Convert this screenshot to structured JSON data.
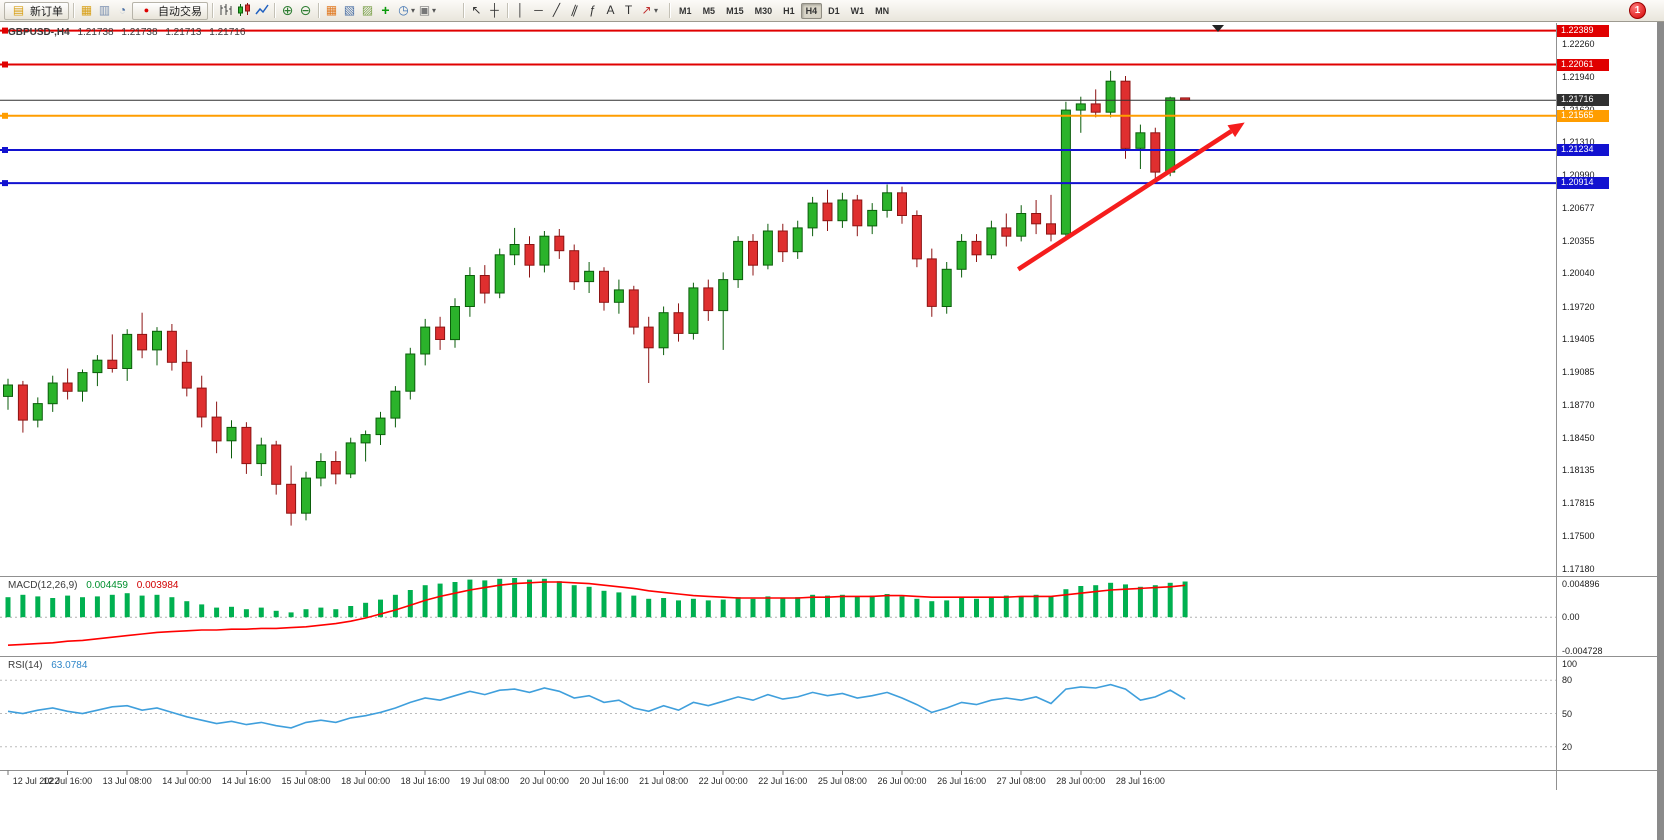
{
  "window": {
    "badge_count": "1"
  },
  "toolbar": {
    "new_order_label": "新订单",
    "auto_trading_label": "自动交易",
    "timeframes": [
      "M1",
      "M5",
      "M15",
      "M30",
      "H1",
      "H4",
      "D1",
      "W1",
      "MN"
    ],
    "active_timeframe": "H4",
    "icons": {
      "new-order-icon": "▤",
      "new-chart-icon": "▦",
      "profiles-icon": "▥",
      "refresh-icon": "◔",
      "auto-trading-icon": "●",
      "zoom-in-icon": "⊕",
      "zoom-out-icon": "⊖",
      "tile-windows-icon": "▦",
      "cascade-windows-icon": "▧",
      "arrange-windows-icon": "▨",
      "indicators-icon": "+",
      "periods-icon": "◷",
      "template-icon": "▣",
      "cursor-icon": "↖",
      "crosshair-icon": "┼",
      "vertical-line-icon": "│",
      "horizontal-line-icon": "─",
      "trendline-icon": "╱",
      "channel-icon": "∥",
      "fibonacci-icon": "ƒ",
      "text-icon": "A",
      "label-icon": "T",
      "arrows-icon": "↗",
      "chevron-down-icon": "▾"
    }
  },
  "chart_data": [
    {
      "type": "candlestick",
      "title": "GBPUSD-,H4",
      "quote": {
        "open": "1.21738",
        "high": "1.21738",
        "low": "1.21713",
        "close": "1.21716"
      },
      "ylim": [
        1.17122,
        1.22453
      ],
      "y_ticks": [
        "1.22260",
        "1.21940",
        "1.21620",
        "1.21310",
        "1.20990",
        "1.20677",
        "1.20355",
        "1.20040",
        "1.19720",
        "1.19405",
        "1.19085",
        "1.18770",
        "1.18450",
        "1.18135",
        "1.17815",
        "1.17500",
        "1.17180"
      ],
      "x_labels": [
        "12 Jul 2022",
        "12 Jul 16:00",
        "13 Jul 08:00",
        "14 Jul 00:00",
        "14 Jul 16:00",
        "15 Jul 08:00",
        "18 Jul 00:00",
        "18 Jul 16:00",
        "19 Jul 08:00",
        "20 Jul 00:00",
        "20 Jul 16:00",
        "21 Jul 08:00",
        "22 Jul 00:00",
        "22 Jul 16:00",
        "25 Jul 08:00",
        "26 Jul 00:00",
        "26 Jul 16:00",
        "27 Jul 08:00",
        "28 Jul 00:00",
        "28 Jul 16:00"
      ],
      "x_label_step": 4,
      "colors": {
        "up": "#2bb32b",
        "up_border": "#0b5e0b",
        "down": "#df2f2f",
        "down_border": "#8d1414"
      },
      "hlines": [
        {
          "price": 1.22389,
          "label": "1.22389",
          "color": "#e00000",
          "width": 2,
          "handle": true
        },
        {
          "price": 1.22061,
          "label": "1.22061",
          "color": "#e00000",
          "width": 2,
          "handle": true
        },
        {
          "price": 1.21716,
          "label": "1.21716",
          "color": "#303030",
          "width": 1,
          "handle": false
        },
        {
          "price": 1.21565,
          "label": "1.21565",
          "color": "#ff9d00",
          "width": 2,
          "handle": true
        },
        {
          "price": 1.21234,
          "label": "1.21234",
          "color": "#1212d0",
          "width": 2,
          "handle": true
        },
        {
          "price": 1.20914,
          "label": "1.20914",
          "color": "#1212d0",
          "width": 2,
          "handle": true
        }
      ],
      "trend_arrow": {
        "from": {
          "bar": 67.8,
          "price": 1.2008
        },
        "to": {
          "bar": 83.0,
          "price": 1.215
        },
        "color": "#f51d1d"
      },
      "candles": [
        [
          1.1885,
          1.1902,
          1.1872,
          1.1896
        ],
        [
          1.1896,
          1.19,
          1.185,
          1.1862
        ],
        [
          1.1862,
          1.1884,
          1.1855,
          1.1878
        ],
        [
          1.1878,
          1.1905,
          1.187,
          1.1898
        ],
        [
          1.1898,
          1.1912,
          1.1882,
          1.189
        ],
        [
          1.189,
          1.1911,
          1.188,
          1.1908
        ],
        [
          1.1908,
          1.1925,
          1.1895,
          1.192
        ],
        [
          1.192,
          1.1945,
          1.1908,
          1.1912
        ],
        [
          1.1912,
          1.195,
          1.19,
          1.1945
        ],
        [
          1.1945,
          1.1966,
          1.1922,
          1.193
        ],
        [
          1.193,
          1.1952,
          1.1915,
          1.1948
        ],
        [
          1.1948,
          1.1955,
          1.191,
          1.1918
        ],
        [
          1.1918,
          1.193,
          1.1885,
          1.1893
        ],
        [
          1.1893,
          1.1905,
          1.1855,
          1.1865
        ],
        [
          1.1865,
          1.188,
          1.183,
          1.1842
        ],
        [
          1.1842,
          1.1862,
          1.1825,
          1.1855
        ],
        [
          1.1855,
          1.186,
          1.181,
          1.182
        ],
        [
          1.182,
          1.1845,
          1.1808,
          1.1838
        ],
        [
          1.1838,
          1.1842,
          1.179,
          1.18
        ],
        [
          1.18,
          1.1818,
          1.176,
          1.1772
        ],
        [
          1.1772,
          1.1812,
          1.1765,
          1.1806
        ],
        [
          1.1806,
          1.183,
          1.1798,
          1.1822
        ],
        [
          1.1822,
          1.1832,
          1.18,
          1.181
        ],
        [
          1.181,
          1.1845,
          1.1806,
          1.184
        ],
        [
          1.184,
          1.1852,
          1.1822,
          1.1848
        ],
        [
          1.1848,
          1.187,
          1.1838,
          1.1864
        ],
        [
          1.1864,
          1.1895,
          1.1855,
          1.189
        ],
        [
          1.189,
          1.1932,
          1.1882,
          1.1926
        ],
        [
          1.1926,
          1.196,
          1.1915,
          1.1952
        ],
        [
          1.1952,
          1.1962,
          1.193,
          1.194
        ],
        [
          1.194,
          1.198,
          1.1932,
          1.1972
        ],
        [
          1.1972,
          1.201,
          1.1962,
          1.2002
        ],
        [
          1.2002,
          1.2012,
          1.1975,
          1.1985
        ],
        [
          1.1985,
          1.2028,
          1.198,
          1.2022
        ],
        [
          1.2022,
          1.2048,
          1.2012,
          1.2032
        ],
        [
          1.2032,
          1.204,
          1.2,
          1.2012
        ],
        [
          1.2012,
          1.2045,
          1.2005,
          1.204
        ],
        [
          1.204,
          1.2047,
          1.2018,
          1.2026
        ],
        [
          1.2026,
          1.2032,
          1.1988,
          1.1996
        ],
        [
          1.1996,
          1.2015,
          1.1985,
          1.2006
        ],
        [
          1.2006,
          1.201,
          1.1968,
          1.1976
        ],
        [
          1.1976,
          1.1998,
          1.1965,
          1.1988
        ],
        [
          1.1988,
          1.1992,
          1.1945,
          1.1952
        ],
        [
          1.1952,
          1.1962,
          1.1898,
          1.1932
        ],
        [
          1.1932,
          1.1972,
          1.1925,
          1.1966
        ],
        [
          1.1966,
          1.1975,
          1.1938,
          1.1946
        ],
        [
          1.1946,
          1.1995,
          1.194,
          1.199
        ],
        [
          1.199,
          1.1998,
          1.1958,
          1.1968
        ],
        [
          1.1968,
          1.2005,
          1.193,
          1.1998
        ],
        [
          1.1998,
          1.204,
          1.199,
          1.2035
        ],
        [
          1.2035,
          1.2042,
          1.2002,
          1.2012
        ],
        [
          1.2012,
          1.2052,
          1.2008,
          1.2045
        ],
        [
          1.2045,
          1.2052,
          1.2015,
          1.2025
        ],
        [
          1.2025,
          1.2055,
          1.2018,
          1.2048
        ],
        [
          1.2048,
          1.2078,
          1.204,
          1.2072
        ],
        [
          1.2072,
          1.2085,
          1.2045,
          1.2055
        ],
        [
          1.2055,
          1.2082,
          1.2048,
          1.2075
        ],
        [
          1.2075,
          1.208,
          1.204,
          1.205
        ],
        [
          1.205,
          1.2072,
          1.2042,
          1.2065
        ],
        [
          1.2065,
          1.209,
          1.2058,
          1.2082
        ],
        [
          1.2082,
          1.2088,
          1.2052,
          1.206
        ],
        [
          1.206,
          1.2065,
          1.201,
          1.2018
        ],
        [
          1.2018,
          1.2028,
          1.1962,
          1.1972
        ],
        [
          1.1972,
          1.2015,
          1.1965,
          1.2008
        ],
        [
          1.2008,
          1.2042,
          1.2,
          1.2035
        ],
        [
          1.2035,
          1.2042,
          1.2015,
          1.2022
        ],
        [
          1.2022,
          1.2055,
          1.2018,
          1.2048
        ],
        [
          1.2048,
          1.2062,
          1.203,
          1.204
        ],
        [
          1.204,
          1.207,
          1.2035,
          1.2062
        ],
        [
          1.2062,
          1.2075,
          1.2042,
          1.2052
        ],
        [
          1.2052,
          1.208,
          1.2035,
          1.2042
        ],
        [
          1.2042,
          1.217,
          1.2038,
          1.2162
        ],
        [
          1.2162,
          1.2175,
          1.214,
          1.2168
        ],
        [
          1.2168,
          1.2182,
          1.2155,
          1.216
        ],
        [
          1.216,
          1.22,
          1.2155,
          1.219
        ],
        [
          1.219,
          1.2195,
          1.2115,
          1.2125
        ],
        [
          1.2125,
          1.2148,
          1.2105,
          1.214
        ],
        [
          1.214,
          1.2145,
          1.2092,
          1.2102
        ],
        [
          1.2102,
          1.2175,
          1.2098,
          1.21738
        ],
        [
          1.21738,
          1.21738,
          1.21713,
          1.21716
        ]
      ]
    },
    {
      "type": "bar",
      "label": "MACD(12,26,9)",
      "value_main": "0.004459",
      "value_signal": "0.003984",
      "ylim": [
        -0.004728,
        0.004896
      ],
      "y_ticks": [
        "0.004896",
        "0.00",
        "-0.004728"
      ],
      "colors": {
        "histogram": "#00b050",
        "signal": "#ff0000"
      },
      "histogram": [
        0.0025,
        0.0028,
        0.0026,
        0.0024,
        0.0027,
        0.0025,
        0.0026,
        0.0028,
        0.003,
        0.0027,
        0.0028,
        0.0025,
        0.002,
        0.0016,
        0.0012,
        0.0013,
        0.001,
        0.0012,
        0.0008,
        0.0006,
        0.001,
        0.0012,
        0.001,
        0.0014,
        0.0018,
        0.0022,
        0.0028,
        0.0034,
        0.004,
        0.0042,
        0.0044,
        0.0047,
        0.0046,
        0.0048,
        0.0049,
        0.0047,
        0.0048,
        0.0045,
        0.004,
        0.0038,
        0.0033,
        0.0031,
        0.0027,
        0.0023,
        0.0024,
        0.0021,
        0.0023,
        0.0021,
        0.0022,
        0.0025,
        0.0023,
        0.0026,
        0.0024,
        0.0025,
        0.0028,
        0.0027,
        0.0028,
        0.0026,
        0.0027,
        0.0029,
        0.0026,
        0.0023,
        0.002,
        0.0021,
        0.0024,
        0.0023,
        0.0025,
        0.0027,
        0.0026,
        0.0028,
        0.0026,
        0.0035,
        0.0039,
        0.004,
        0.0043,
        0.0041,
        0.0038,
        0.004,
        0.0043,
        0.004459
      ],
      "signal": [
        -0.0035,
        -0.0034,
        -0.0033,
        -0.0032,
        -0.003,
        -0.0029,
        -0.0027,
        -0.0025,
        -0.0023,
        -0.0021,
        -0.0019,
        -0.0018,
        -0.0017,
        -0.0016,
        -0.0016,
        -0.0015,
        -0.0015,
        -0.0014,
        -0.0014,
        -0.0013,
        -0.0012,
        -0.001,
        -0.0008,
        -0.0005,
        -0.0001,
        0.0004,
        0.0009,
        0.0015,
        0.0021,
        0.0026,
        0.003,
        0.0034,
        0.0037,
        0.004,
        0.0042,
        0.0043,
        0.0044,
        0.0044,
        0.0043,
        0.0042,
        0.004,
        0.0038,
        0.0036,
        0.0033,
        0.0031,
        0.0029,
        0.0027,
        0.0026,
        0.0025,
        0.0024,
        0.0024,
        0.0024,
        0.0024,
        0.0024,
        0.0025,
        0.0025,
        0.0026,
        0.0026,
        0.0026,
        0.0027,
        0.0027,
        0.0026,
        0.0025,
        0.0025,
        0.0025,
        0.0025,
        0.0025,
        0.0025,
        0.0026,
        0.0026,
        0.0026,
        0.0028,
        0.003,
        0.0032,
        0.0034,
        0.0035,
        0.0036,
        0.0037,
        0.0038,
        0.003984
      ]
    },
    {
      "type": "line",
      "label": "RSI(14)",
      "value": "63.0784",
      "ylim": [
        0,
        100
      ],
      "levels": [
        80,
        50,
        20
      ],
      "y_ticks": [
        "100",
        "80",
        "50",
        "20"
      ],
      "color": "#3f9fdc",
      "values": [
        52,
        50,
        53,
        55,
        52,
        50,
        53,
        56,
        57,
        53,
        55,
        51,
        47,
        44,
        41,
        43,
        40,
        42,
        39,
        37,
        42,
        44,
        42,
        46,
        48,
        51,
        55,
        60,
        64,
        62,
        66,
        70,
        67,
        71,
        72,
        69,
        73,
        70,
        64,
        66,
        60,
        62,
        55,
        52,
        57,
        53,
        60,
        57,
        61,
        65,
        62,
        67,
        63,
        65,
        69,
        66,
        68,
        64,
        66,
        69,
        64,
        58,
        51,
        55,
        60,
        58,
        62,
        64,
        62,
        65,
        59,
        72,
        74,
        73,
        76,
        72,
        62,
        65,
        71,
        63.0784
      ]
    }
  ]
}
